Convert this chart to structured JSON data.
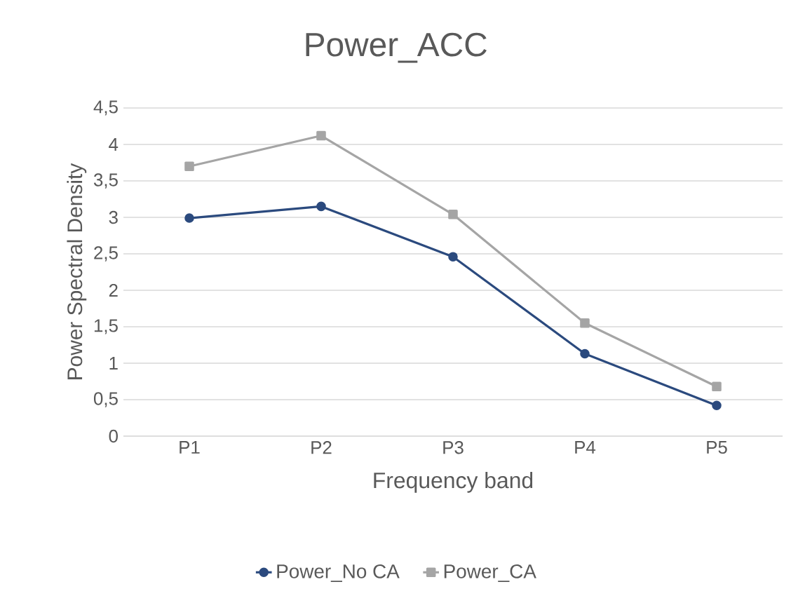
{
  "chart_data": {
    "type": "line",
    "title": "Power_ACC",
    "xlabel": "Frequency band",
    "ylabel": "Power Spectral Density",
    "categories": [
      "P1",
      "P2",
      "P3",
      "P4",
      "P5"
    ],
    "series": [
      {
        "name": "Power_No CA",
        "color": "#2b4a7e",
        "marker": "circle",
        "values": [
          2.99,
          3.15,
          2.46,
          1.13,
          0.42
        ]
      },
      {
        "name": "Power_CA",
        "color": "#a5a5a5",
        "marker": "square",
        "values": [
          3.7,
          4.12,
          3.04,
          1.55,
          0.68
        ]
      }
    ],
    "ylim": [
      0,
      4.5
    ],
    "yticks": [
      0,
      {
        "value": 0.5,
        "label": "0,5"
      },
      1,
      {
        "value": 1.5,
        "label": "1,5"
      },
      2,
      {
        "value": 2.5,
        "label": "2,5"
      },
      3,
      {
        "value": 3.5,
        "label": "3,5"
      },
      4,
      {
        "value": 4.5,
        "label": "4,5"
      }
    ],
    "grid": "y",
    "legend": "bottom",
    "line_style": "solid"
  }
}
